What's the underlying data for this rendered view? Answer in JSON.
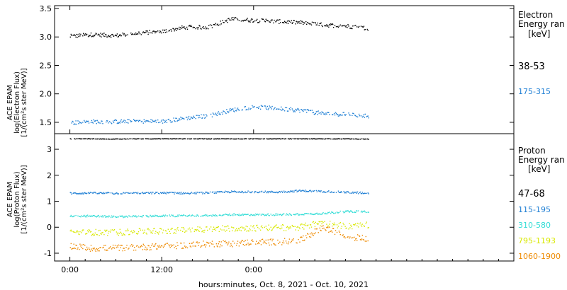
{
  "colors": {
    "black": "#000000",
    "blue": "#1f7fd4",
    "cyan": "#33ddd6",
    "yellow": "#d8e800",
    "orange": "#ee8a00"
  },
  "chart_data": [
    {
      "type": "scatter",
      "ylabel": [
        "ACE EPAM",
        "log(Electron Flux)",
        "[1/(cm²s ster MeV)]"
      ],
      "ylim": [
        1.3,
        3.55
      ],
      "yticks": [
        1.5,
        2.0,
        2.5,
        3.0,
        3.5
      ],
      "ytick_labels": [
        "1.5",
        "2.0",
        "2.5",
        "3.0",
        "3.5"
      ],
      "legend_title": [
        "Electron",
        "Energy ran",
        "[keV]"
      ],
      "series": [
        {
          "name": "38-53",
          "color": "#000000",
          "x": [
            0,
            3,
            6,
            9,
            12,
            15,
            18,
            21,
            24,
            27,
            30,
            33,
            36,
            39
          ],
          "y": [
            3.02,
            3.05,
            3.03,
            3.08,
            3.1,
            3.18,
            3.18,
            3.32,
            3.3,
            3.28,
            3.26,
            3.22,
            3.2,
            3.16
          ]
        },
        {
          "name": "175-315",
          "color": "#1f7fd4",
          "x": [
            0,
            3,
            6,
            9,
            12,
            15,
            18,
            21,
            24,
            27,
            30,
            33,
            36,
            39
          ],
          "y": [
            1.5,
            1.52,
            1.52,
            1.53,
            1.52,
            1.58,
            1.62,
            1.72,
            1.78,
            1.75,
            1.72,
            1.66,
            1.65,
            1.62
          ]
        }
      ]
    },
    {
      "type": "scatter",
      "ylabel": [
        "ACE EPAM",
        "log(Proton Flux)",
        "[1/(cm²s ster MeV)]"
      ],
      "ylim": [
        -1.3,
        3.6
      ],
      "yticks": [
        -1,
        0,
        1,
        2,
        3
      ],
      "ytick_labels": [
        "-1",
        "0",
        "1",
        "2",
        "3"
      ],
      "legend_title": [
        "Proton",
        "Energy ran",
        "[keV]"
      ],
      "series": [
        {
          "name": "47-68",
          "color": "#000000",
          "x": [
            0,
            3,
            6,
            9,
            12,
            15,
            18,
            21,
            24,
            27,
            30,
            33,
            36,
            39
          ],
          "y": [
            3.42,
            3.42,
            3.41,
            3.42,
            3.42,
            3.42,
            3.42,
            3.42,
            3.42,
            3.42,
            3.42,
            3.42,
            3.42,
            3.41
          ]
        },
        {
          "name": "115-195",
          "color": "#1f7fd4",
          "x": [
            0,
            3,
            6,
            9,
            12,
            15,
            18,
            21,
            24,
            27,
            30,
            33,
            36,
            39
          ],
          "y": [
            1.32,
            1.33,
            1.32,
            1.33,
            1.34,
            1.33,
            1.34,
            1.38,
            1.38,
            1.37,
            1.42,
            1.4,
            1.36,
            1.33
          ]
        },
        {
          "name": "310-580",
          "color": "#33ddd6",
          "x": [
            0,
            3,
            6,
            9,
            12,
            15,
            18,
            21,
            24,
            27,
            30,
            33,
            36,
            39
          ],
          "y": [
            0.45,
            0.45,
            0.42,
            0.44,
            0.45,
            0.46,
            0.47,
            0.5,
            0.5,
            0.5,
            0.52,
            0.55,
            0.62,
            0.62
          ]
        },
        {
          "name": "795-1193",
          "color": "#d8e800",
          "x": [
            0,
            3,
            6,
            9,
            12,
            15,
            18,
            21,
            24,
            27,
            30,
            33,
            36,
            39
          ],
          "y": [
            -0.2,
            -0.18,
            -0.18,
            -0.15,
            -0.12,
            -0.1,
            -0.05,
            -0.02,
            -0.02,
            0.0,
            0.02,
            0.2,
            0.05,
            0.1
          ]
        },
        {
          "name": "1060-1900",
          "color": "#ee8a00",
          "x": [
            0,
            3,
            6,
            9,
            12,
            15,
            18,
            21,
            24,
            27,
            30,
            33,
            36,
            39
          ],
          "y": [
            -0.7,
            -0.8,
            -0.78,
            -0.75,
            -0.72,
            -0.68,
            -0.62,
            -0.62,
            -0.55,
            -0.55,
            -0.5,
            0.02,
            -0.35,
            -0.42
          ]
        }
      ]
    }
  ],
  "x_axis": {
    "xlim": [
      -2,
      58
    ],
    "ticks": [
      0,
      12,
      24
    ],
    "tick_labels": [
      "0:00",
      "12:00",
      "0:00"
    ],
    "xlabel": "hours:minutes, Oct.  8, 2021 - Oct. 10, 2021"
  }
}
